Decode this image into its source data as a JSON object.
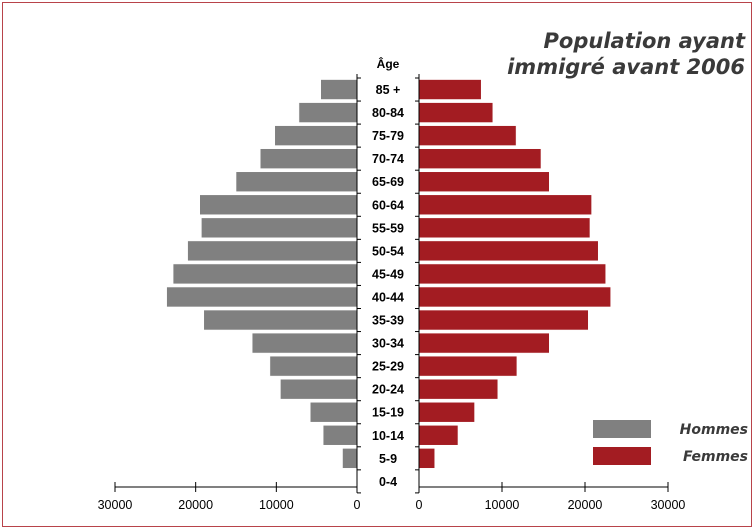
{
  "chart_data": {
    "type": "bar",
    "title_lines": [
      "Population ayant",
      "immigré avant 2006"
    ],
    "age_header": "Âge",
    "categories": [
      "85 +",
      "80-84",
      "75-79",
      "70-74",
      "65-69",
      "60-64",
      "55-59",
      "50-54",
      "45-49",
      "40-44",
      "35-39",
      "30-34",
      "25-29",
      "20-24",
      "15-19",
      "10-14",
      "5-9",
      "0-4"
    ],
    "series": [
      {
        "name": "Hommes",
        "color": "#808080",
        "values": [
          4500,
          7200,
          10200,
          12000,
          15000,
          19500,
          19300,
          21000,
          22800,
          23600,
          19000,
          13000,
          10800,
          9500,
          5800,
          4200,
          1800,
          0
        ]
      },
      {
        "name": "Femmes",
        "color": "#a31c22",
        "values": [
          7500,
          8900,
          11700,
          14700,
          15700,
          20800,
          20600,
          21600,
          22500,
          23100,
          20400,
          15700,
          11800,
          9500,
          6700,
          4700,
          1900,
          0
        ]
      }
    ],
    "left_axis": {
      "ticks": [
        30000,
        20000,
        10000,
        0
      ],
      "range": [
        30000,
        0
      ]
    },
    "right_axis": {
      "ticks": [
        0,
        10000,
        20000,
        30000
      ],
      "range": [
        0,
        30000
      ]
    },
    "legend_position": "bottom-right",
    "grid": false
  }
}
